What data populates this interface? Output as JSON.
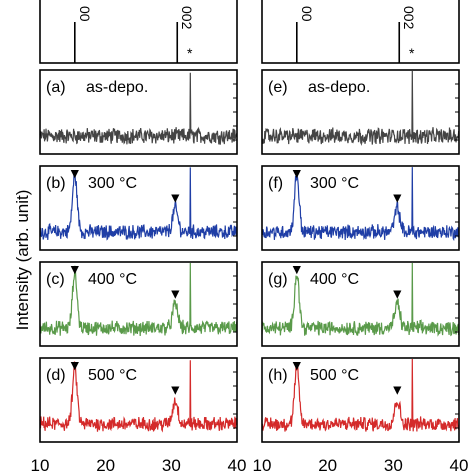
{
  "chart_data": {
    "type": "line",
    "ylabel": "Intensity (arb. unit)",
    "x_ticks": [
      "10",
      "20",
      "30",
      "40"
    ],
    "xlim": [
      10,
      40
    ],
    "reference_markers": {
      "labels": [
        "00",
        "002"
      ],
      "positions": [
        15.3,
        30.9
      ],
      "substrate_mark": "*",
      "substrate_position": 32.8
    },
    "columns": [
      {
        "panels": [
          {
            "label": "(a)",
            "condition": "as-depo.",
            "color": "#444444",
            "peaks": [],
            "sub_peak": 32.9,
            "sub_height": 0.78
          },
          {
            "label": "(b)",
            "condition": "300 °C",
            "color": "#1f3ea6",
            "peaks": [
              {
                "x": 15.3,
                "h": 0.68
              },
              {
                "x": 30.6,
                "h": 0.28
              }
            ],
            "sub_peak": 32.9,
            "sub_height": 0.8
          },
          {
            "label": "(c)",
            "condition": "400 °C",
            "color": "#5a9a4a",
            "peaks": [
              {
                "x": 15.3,
                "h": 0.66
              },
              {
                "x": 30.6,
                "h": 0.28
              }
            ],
            "sub_peak": 32.9,
            "sub_height": 0.78
          },
          {
            "label": "(d)",
            "condition": "500 °C",
            "color": "#d42a2a",
            "peaks": [
              {
                "x": 15.3,
                "h": 0.66
              },
              {
                "x": 30.6,
                "h": 0.28
              }
            ],
            "sub_peak": 32.9,
            "sub_height": 0.82
          }
        ]
      },
      {
        "panels": [
          {
            "label": "(e)",
            "condition": "as-depo.",
            "color": "#444444",
            "peaks": [],
            "sub_peak": 32.9,
            "sub_height": 0.8
          },
          {
            "label": "(f)",
            "condition": "300 °C",
            "color": "#1f3ea6",
            "peaks": [
              {
                "x": 15.3,
                "h": 0.68
              },
              {
                "x": 30.6,
                "h": 0.28
              }
            ],
            "sub_peak": 32.9,
            "sub_height": 0.8
          },
          {
            "label": "(g)",
            "condition": "400 °C",
            "color": "#5a9a4a",
            "peaks": [
              {
                "x": 15.3,
                "h": 0.66
              },
              {
                "x": 30.6,
                "h": 0.28
              }
            ],
            "sub_peak": 32.9,
            "sub_height": 0.78
          },
          {
            "label": "(h)",
            "condition": "500 °C",
            "color": "#d42a2a",
            "peaks": [
              {
                "x": 15.3,
                "h": 0.66
              },
              {
                "x": 30.6,
                "h": 0.28
              }
            ],
            "sub_peak": 32.9,
            "sub_height": 0.82
          }
        ]
      }
    ],
    "peak_marker": "▼"
  }
}
